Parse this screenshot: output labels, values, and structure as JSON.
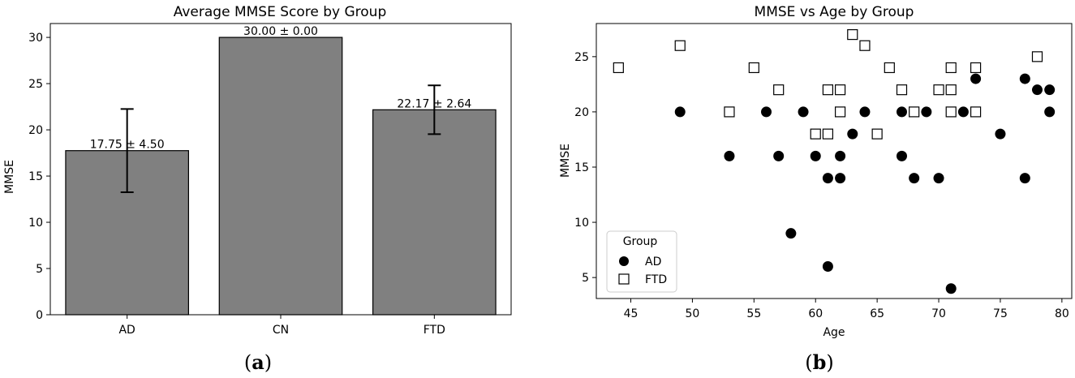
{
  "chart_data": [
    {
      "type": "bar",
      "title": "Average MMSE Score by Group",
      "xlabel": "",
      "ylabel": "MMSE",
      "categories": [
        "AD",
        "CN",
        "FTD"
      ],
      "values": [
        17.75,
        30.0,
        22.17
      ],
      "errors": [
        4.5,
        0.0,
        2.64
      ],
      "value_labels": [
        "17.75 ± 4.50",
        "30.00 ± 0.00",
        "22.17 ± 2.64"
      ],
      "ylim": [
        0,
        31.5
      ],
      "yticks": [
        0,
        5,
        10,
        15,
        20,
        25,
        30
      ],
      "bar_color": "#808080",
      "grid": false,
      "panel_label": "a"
    },
    {
      "type": "scatter",
      "title": "MMSE vs Age by Group",
      "xlabel": "Age",
      "ylabel": "MMSE",
      "xlim": [
        42.2,
        80.8
      ],
      "ylim": [
        3.1,
        28.0
      ],
      "xticks": [
        45,
        50,
        55,
        60,
        65,
        70,
        75,
        80
      ],
      "yticks": [
        5,
        10,
        15,
        20,
        25
      ],
      "grid": false,
      "legend": {
        "title": "Group",
        "placement": "lower-left"
      },
      "series": [
        {
          "name": "AD",
          "marker": "filled-circle",
          "points": [
            [
              49,
              20
            ],
            [
              53,
              16
            ],
            [
              56,
              20
            ],
            [
              57,
              16
            ],
            [
              58,
              9
            ],
            [
              59,
              20
            ],
            [
              60,
              16
            ],
            [
              61,
              14
            ],
            [
              61,
              6
            ],
            [
              62,
              16
            ],
            [
              62,
              14
            ],
            [
              63,
              18
            ],
            [
              64,
              20
            ],
            [
              67,
              20
            ],
            [
              67,
              16
            ],
            [
              68,
              14
            ],
            [
              69,
              20
            ],
            [
              70,
              14
            ],
            [
              71,
              4
            ],
            [
              72,
              20
            ],
            [
              73,
              23
            ],
            [
              75,
              18
            ],
            [
              77,
              23
            ],
            [
              77,
              14
            ],
            [
              78,
              22
            ],
            [
              79,
              22
            ],
            [
              79,
              20
            ]
          ]
        },
        {
          "name": "FTD",
          "marker": "open-square",
          "points": [
            [
              44,
              24
            ],
            [
              49,
              26
            ],
            [
              53,
              20
            ],
            [
              55,
              24
            ],
            [
              57,
              22
            ],
            [
              60,
              18
            ],
            [
              61,
              22
            ],
            [
              61,
              18
            ],
            [
              62,
              22
            ],
            [
              62,
              20
            ],
            [
              63,
              27
            ],
            [
              64,
              26
            ],
            [
              65,
              18
            ],
            [
              66,
              24
            ],
            [
              67,
              22
            ],
            [
              68,
              20
            ],
            [
              70,
              22
            ],
            [
              71,
              24
            ],
            [
              71,
              22
            ],
            [
              71,
              20
            ],
            [
              73,
              24
            ],
            [
              73,
              20
            ],
            [
              78,
              25
            ]
          ]
        }
      ],
      "panel_label": "b"
    }
  ]
}
